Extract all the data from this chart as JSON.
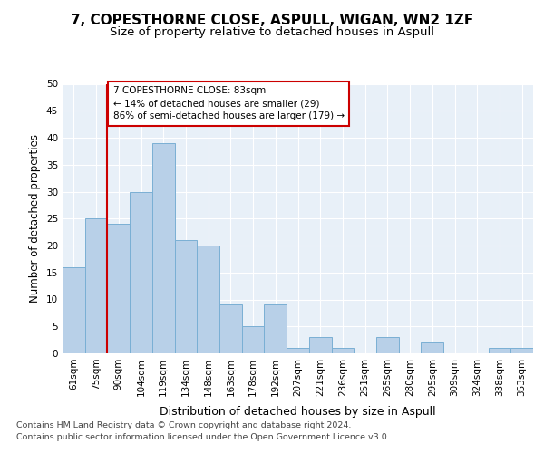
{
  "title": "7, COPESTHORNE CLOSE, ASPULL, WIGAN, WN2 1ZF",
  "subtitle": "Size of property relative to detached houses in Aspull",
  "xlabel": "Distribution of detached houses by size in Aspull",
  "ylabel": "Number of detached properties",
  "categories": [
    "61sqm",
    "75sqm",
    "90sqm",
    "104sqm",
    "119sqm",
    "134sqm",
    "148sqm",
    "163sqm",
    "178sqm",
    "192sqm",
    "207sqm",
    "221sqm",
    "236sqm",
    "251sqm",
    "265sqm",
    "280sqm",
    "295sqm",
    "309sqm",
    "324sqm",
    "338sqm",
    "353sqm"
  ],
  "values": [
    16,
    25,
    24,
    30,
    39,
    21,
    20,
    9,
    5,
    9,
    1,
    3,
    1,
    0,
    3,
    0,
    2,
    0,
    0,
    1,
    1
  ],
  "bar_color": "#b8d0e8",
  "bar_edge_color": "#7aafd4",
  "vline_x_pos": 1.5,
  "annotation_line1": "7 COPESTHORNE CLOSE: 83sqm",
  "annotation_line2": "← 14% of detached houses are smaller (29)",
  "annotation_line3": "86% of semi-detached houses are larger (179) →",
  "vline_color": "#cc0000",
  "annotation_box_edge": "#cc0000",
  "footer_line1": "Contains HM Land Registry data © Crown copyright and database right 2024.",
  "footer_line2": "Contains public sector information licensed under the Open Government Licence v3.0.",
  "ylim": [
    0,
    50
  ],
  "yticks": [
    0,
    5,
    10,
    15,
    20,
    25,
    30,
    35,
    40,
    45,
    50
  ],
  "bg_color": "#e8f0f8",
  "fig_bg_color": "#ffffff",
  "title_fontsize": 11,
  "subtitle_fontsize": 9.5,
  "ylabel_fontsize": 8.5,
  "xlabel_fontsize": 9,
  "tick_fontsize": 7.5,
  "footer_fontsize": 6.8
}
